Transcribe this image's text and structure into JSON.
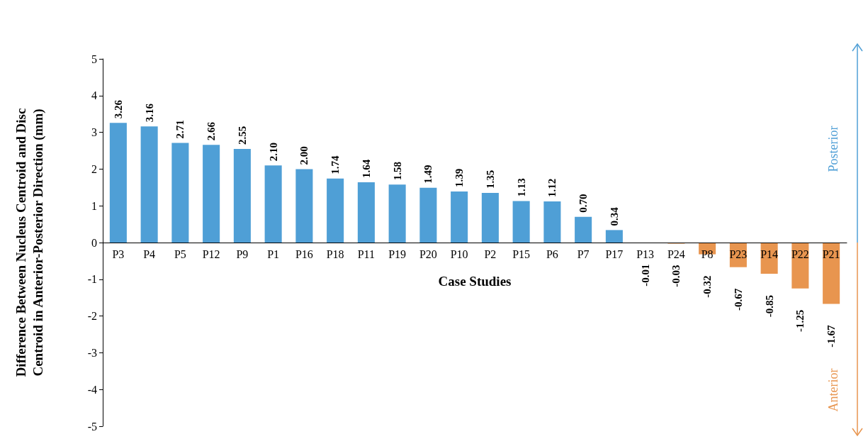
{
  "chart_data": {
    "type": "bar",
    "xlabel": "Case Studies",
    "ylabel": "Difference Between Nucleus Centroid and Disc Centroid in Anterior-Posterior Direction (mm)",
    "categories": [
      "P3",
      "P4",
      "P5",
      "P12",
      "P9",
      "P1",
      "P16",
      "P18",
      "P11",
      "P19",
      "P20",
      "P10",
      "P2",
      "P15",
      "P6",
      "P7",
      "P17",
      "P13",
      "P24",
      "P8",
      "P23",
      "P14",
      "P22",
      "P21"
    ],
    "values": [
      3.26,
      3.16,
      2.71,
      2.66,
      2.55,
      2.1,
      2.0,
      1.74,
      1.64,
      1.58,
      1.49,
      1.39,
      1.35,
      1.13,
      1.12,
      0.7,
      0.34,
      -0.01,
      -0.03,
      -0.32,
      -0.67,
      -0.85,
      -1.25,
      -1.67
    ],
    "value_labels": [
      "3.26",
      "3.16",
      "2.71",
      "2.66",
      "2.55",
      "2.10",
      "2.00",
      "1.74",
      "1.64",
      "1.58",
      "1.49",
      "1.39",
      "1.35",
      "1.13",
      "1.12",
      "0.70",
      "0.34",
      "-0.01",
      "-0.03",
      "-0.32",
      "-0.67",
      "-0.85",
      "-1.25",
      "-1.67"
    ],
    "colors": [
      "#4f9fd6",
      "#4f9fd6",
      "#4f9fd6",
      "#4f9fd6",
      "#4f9fd6",
      "#4f9fd6",
      "#4f9fd6",
      "#4f9fd6",
      "#4f9fd6",
      "#4f9fd6",
      "#4f9fd6",
      "#4f9fd6",
      "#4f9fd6",
      "#4f9fd6",
      "#4f9fd6",
      "#4f9fd6",
      "#4f9fd6",
      "#e8954f",
      "#e8954f",
      "#e8954f",
      "#e8954f",
      "#e8954f",
      "#e8954f",
      "#e8954f"
    ],
    "ylim": [
      -5,
      5
    ],
    "yticks": [
      -5,
      -4,
      -3,
      -2,
      -1,
      0,
      1,
      2,
      3,
      4,
      5
    ],
    "grid": false,
    "annotations": [
      "Posterior",
      "Anterior"
    ]
  }
}
